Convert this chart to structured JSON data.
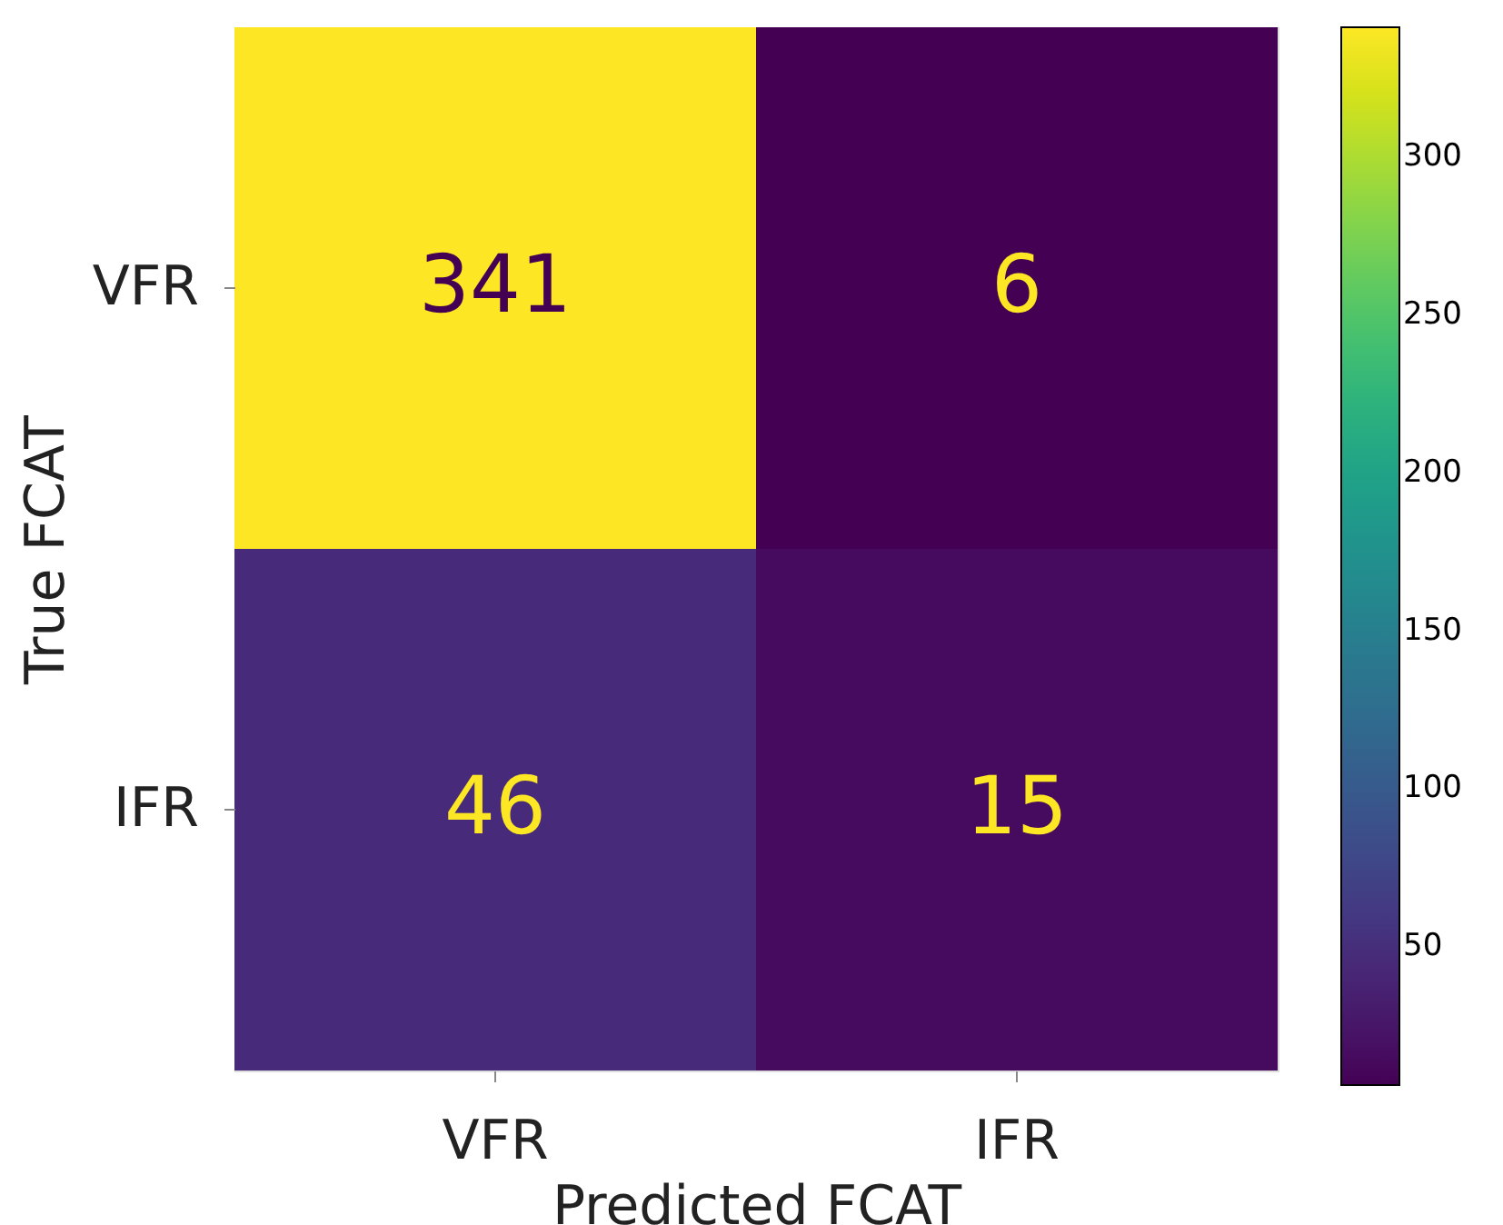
{
  "chart_data": {
    "type": "heatmap",
    "xlabel": "Predicted FCAT",
    "ylabel": "True FCAT",
    "categories": [
      "VFR",
      "IFR"
    ],
    "y_categories": [
      "VFR",
      "IFR"
    ],
    "cells": [
      [
        341,
        6
      ],
      [
        46,
        15
      ]
    ],
    "clim": [
      6,
      341
    ],
    "cticks": [
      50,
      100,
      150,
      200,
      250,
      300
    ],
    "data_labels": true
  }
}
